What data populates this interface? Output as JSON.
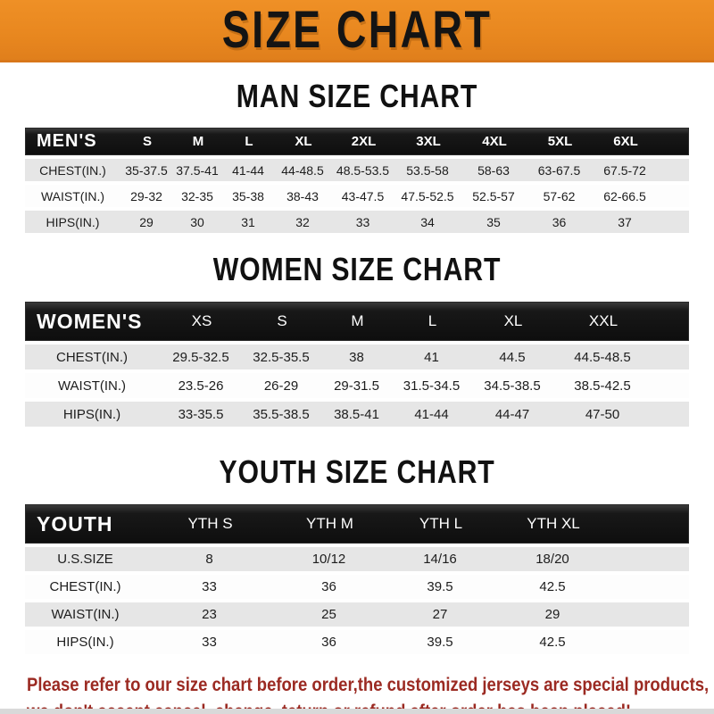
{
  "banner": {
    "title": "SIZE CHART",
    "bg_color": "#E8871F"
  },
  "sections": [
    {
      "id": "men",
      "heading": "MAN SIZE CHART",
      "header_label": "MEN'S",
      "columns": [
        "S",
        "M",
        "L",
        "XL",
        "2XL",
        "3XL",
        "4XL",
        "5XL",
        "6XL"
      ],
      "rows": [
        {
          "label": "CHEST(IN.)",
          "values": [
            "35-37.5",
            "37.5-41",
            "41-44",
            "44-48.5",
            "48.5-53.5",
            "53.5-58",
            "58-63",
            "63-67.5",
            "67.5-72"
          ]
        },
        {
          "label": "WAIST(IN.)",
          "values": [
            "29-32",
            "32-35",
            "35-38",
            "38-43",
            "43-47.5",
            "47.5-52.5",
            "52.5-57",
            "57-62",
            "62-66.5"
          ]
        },
        {
          "label": "HIPS(IN.)",
          "values": [
            "29",
            "30",
            "31",
            "32",
            "33",
            "34",
            "35",
            "36",
            "37"
          ]
        }
      ]
    },
    {
      "id": "women",
      "heading": "WOMEN SIZE CHART",
      "header_label": "WOMEN'S",
      "columns": [
        "XS",
        "S",
        "M",
        "L",
        "XL",
        "XXL"
      ],
      "rows": [
        {
          "label": "CHEST(IN.)",
          "values": [
            "29.5-32.5",
            "32.5-35.5",
            "38",
            "41",
            "44.5",
            "44.5-48.5"
          ]
        },
        {
          "label": "WAIST(IN.)",
          "values": [
            "23.5-26",
            "26-29",
            "29-31.5",
            "31.5-34.5",
            "34.5-38.5",
            "38.5-42.5"
          ]
        },
        {
          "label": "HIPS(IN.)",
          "values": [
            "33-35.5",
            "35.5-38.5",
            "38.5-41",
            "41-44",
            "44-47",
            "47-50"
          ]
        }
      ]
    },
    {
      "id": "youth",
      "heading": "YOUTH SIZE CHART",
      "header_label": "YOUTH",
      "columns": [
        "YTH S",
        "YTH M",
        "YTH L",
        "YTH XL"
      ],
      "rows": [
        {
          "label": "U.S.SIZE",
          "values": [
            "8",
            "10/12",
            "14/16",
            "18/20"
          ]
        },
        {
          "label": "CHEST(IN.)",
          "values": [
            "33",
            "36",
            "39.5",
            "42.5"
          ]
        },
        {
          "label": "WAIST(IN.)",
          "values": [
            "23",
            "25",
            "27",
            "29"
          ]
        },
        {
          "label": "HIPS(IN.)",
          "values": [
            "33",
            "36",
            "39.5",
            "42.5"
          ]
        }
      ]
    }
  ],
  "footer": {
    "line1": "Please refer to our size chart before order,the customized jerseys are special products,",
    "line2": "we don't accept cancel, change, teturn or refund after order has been placed!",
    "text_color": "#9b2a22"
  }
}
